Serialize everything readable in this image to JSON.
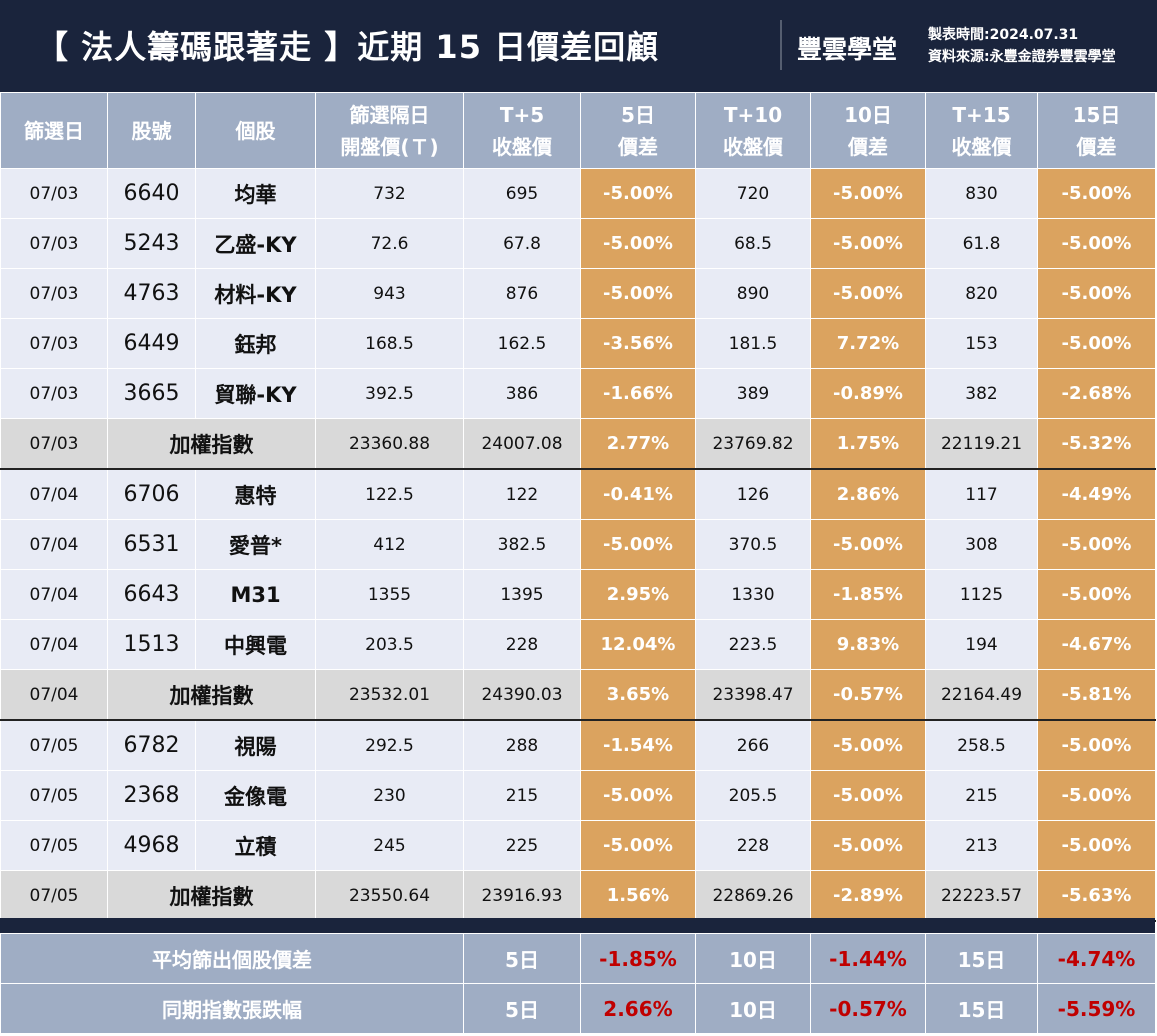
{
  "header": {
    "title": "【 法人籌碼跟著走 】近期 15 日價差回顧",
    "logo": "豐雲學堂",
    "made_time": "製表時間:2024.07.31",
    "source": "資料來源:永豐金證券豐雲學堂"
  },
  "columns": [
    "篩選日",
    "股號",
    "個股",
    "篩選隔日\n開盤價(Ｔ)",
    "T+5\n收盤價",
    "5日\n價差",
    "T+10\n收盤價",
    "10日\n價差",
    "T+15\n收盤價",
    "15日\n價差"
  ],
  "rows": [
    [
      "07/03",
      "6640",
      "均華",
      "732",
      "695",
      "-5.00%",
      "720",
      "-5.00%",
      "830",
      "-5.00%"
    ],
    [
      "07/03",
      "5243",
      "乙盛-KY",
      "72.6",
      "67.8",
      "-5.00%",
      "68.5",
      "-5.00%",
      "61.8",
      "-5.00%"
    ],
    [
      "07/03",
      "4763",
      "材料-KY",
      "943",
      "876",
      "-5.00%",
      "890",
      "-5.00%",
      "820",
      "-5.00%"
    ],
    [
      "07/03",
      "6449",
      "鈺邦",
      "168.5",
      "162.5",
      "-3.56%",
      "181.5",
      "7.72%",
      "153",
      "-5.00%"
    ],
    [
      "07/03",
      "3665",
      "貿聯-KY",
      "392.5",
      "386",
      "-1.66%",
      "389",
      "-0.89%",
      "382",
      "-2.68%"
    ],
    [
      "07/03",
      "",
      "加權指數",
      "23360.88",
      "24007.08",
      "2.77%",
      "23769.82",
      "1.75%",
      "22119.21",
      "-5.32%"
    ],
    [
      "07/04",
      "6706",
      "惠特",
      "122.5",
      "122",
      "-0.41%",
      "126",
      "2.86%",
      "117",
      "-4.49%"
    ],
    [
      "07/04",
      "6531",
      "愛普*",
      "412",
      "382.5",
      "-5.00%",
      "370.5",
      "-5.00%",
      "308",
      "-5.00%"
    ],
    [
      "07/04",
      "6643",
      "M31",
      "1355",
      "1395",
      "2.95%",
      "1330",
      "-1.85%",
      "1125",
      "-5.00%"
    ],
    [
      "07/04",
      "1513",
      "中興電",
      "203.5",
      "228",
      "12.04%",
      "223.5",
      "9.83%",
      "194",
      "-4.67%"
    ],
    [
      "07/04",
      "",
      "加權指數",
      "23532.01",
      "24390.03",
      "3.65%",
      "23398.47",
      "-0.57%",
      "22164.49",
      "-5.81%"
    ],
    [
      "07/05",
      "6782",
      "視陽",
      "292.5",
      "288",
      "-1.54%",
      "266",
      "-5.00%",
      "258.5",
      "-5.00%"
    ],
    [
      "07/05",
      "2368",
      "金像電",
      "230",
      "215",
      "-5.00%",
      "205.5",
      "-5.00%",
      "215",
      "-5.00%"
    ],
    [
      "07/05",
      "4968",
      "立積",
      "245",
      "225",
      "-5.00%",
      "228",
      "-5.00%",
      "213",
      "-5.00%"
    ],
    [
      "07/05",
      "",
      "加權指數",
      "23550.64",
      "23916.93",
      "1.56%",
      "22869.26",
      "-2.89%",
      "22223.57",
      "-5.63%"
    ]
  ],
  "summary": [
    [
      "平均篩出個股價差",
      "5日",
      "-1.85%",
      "10日",
      "-1.44%",
      "15日",
      "-4.74%"
    ],
    [
      "同期指數張跌幅",
      "5日",
      "2.66%",
      "10日",
      "-0.57%",
      "15日",
      "-5.59%"
    ]
  ],
  "colors": {
    "header_bg": "#1a243c",
    "col_header": "#9fadc4",
    "highlight": "#dba35f",
    "row_bg": "#e8ebf5",
    "index_bg": "#d9d9d9",
    "negative_red": "#c00000"
  }
}
